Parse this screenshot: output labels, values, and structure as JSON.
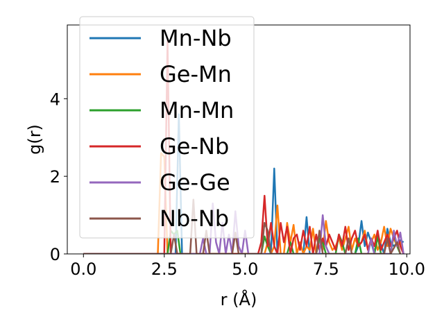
{
  "chart_data": {
    "type": "line",
    "title": "",
    "xlabel": "r (Å)",
    "ylabel": "g(r)",
    "xlim": [
      -0.5,
      10.1
    ],
    "ylim": [
      0,
      5.9
    ],
    "xticks": [
      0.0,
      2.5,
      5.0,
      7.5,
      10.0
    ],
    "xtick_labels": [
      "0.0",
      "2.5",
      "5.0",
      "7.5",
      "10.0"
    ],
    "yticks": [
      0,
      2,
      4
    ],
    "ytick_labels": [
      "0",
      "2",
      "4"
    ],
    "grid": false,
    "legend_position": "top-left",
    "series": [
      {
        "name": "Mn-Nb",
        "color": "#1f77b4",
        "x": [
          0.0,
          2.85,
          2.95,
          3.05,
          3.15,
          5.8,
          5.9,
          6.0,
          6.1,
          6.8,
          6.9,
          7.0,
          7.1,
          8.4,
          8.5,
          8.6,
          8.7,
          8.8,
          8.9,
          9.0,
          9.1,
          9.3,
          9.4,
          9.5,
          9.6,
          9.8,
          9.9
        ],
        "y": [
          0,
          0,
          3.6,
          0,
          0,
          0,
          2.2,
          0,
          0,
          0,
          0.95,
          0,
          0,
          0,
          0.2,
          0.85,
          0.2,
          0.55,
          0.3,
          0,
          0.5,
          0,
          0.65,
          0.3,
          0.2,
          0.35,
          0.3
        ]
      },
      {
        "name": "Ge-Mn",
        "color": "#ff7f0e",
        "x": [
          0.0,
          2.3,
          2.4,
          2.5,
          2.6,
          3.0,
          5.6,
          5.7,
          5.8,
          5.9,
          6.0,
          6.1,
          6.2,
          6.3,
          6.4,
          6.5,
          6.6,
          6.7,
          6.8,
          6.9,
          7.0,
          7.1,
          7.2,
          7.3,
          7.4,
          7.5,
          7.6,
          7.7,
          7.8,
          7.9,
          8.0,
          8.1,
          8.2,
          8.3,
          8.4,
          8.5,
          8.6,
          8.7,
          8.8,
          8.9,
          9.0,
          9.1,
          9.2,
          9.3,
          9.4,
          9.5,
          9.6,
          9.7,
          9.8,
          9.9
        ],
        "y": [
          0,
          0,
          2.6,
          2.5,
          0,
          0,
          0,
          0.3,
          0,
          0.2,
          1.25,
          0,
          0,
          0.8,
          0.3,
          0.75,
          0,
          0.3,
          0,
          0.2,
          0.1,
          0.65,
          0,
          0.4,
          0.1,
          0.85,
          0.3,
          0.1,
          0.2,
          0.4,
          0.1,
          0.4,
          0.7,
          0.1,
          0.4,
          0.2,
          0.3,
          0.6,
          0.1,
          0.3,
          0.5,
          0.1,
          0.3,
          0.7,
          0.2,
          0.65,
          0.4,
          0.2,
          0.3,
          0
        ]
      },
      {
        "name": "Mn-Mn",
        "color": "#2ca02c",
        "x": [
          0.0,
          2.6,
          2.7,
          2.8,
          2.9,
          3.0,
          5.5,
          5.6,
          5.7,
          5.8,
          6.3,
          6.4,
          6.5,
          7.2,
          7.3,
          7.4,
          7.5,
          7.8,
          7.9,
          8.0,
          8.1,
          8.4,
          8.5,
          8.6,
          9.0,
          9.1,
          9.2,
          9.5,
          9.6,
          9.7,
          9.8
        ],
        "y": [
          0,
          0,
          0.6,
          0.5,
          0.6,
          0,
          0,
          0.45,
          0.2,
          0,
          0,
          0.3,
          0,
          0,
          0.4,
          0.3,
          0,
          0,
          0.5,
          0.3,
          0,
          0,
          0.4,
          0,
          0,
          0.45,
          0,
          0,
          0.5,
          0.2,
          0
        ]
      },
      {
        "name": "Ge-Nb",
        "color": "#d62728",
        "x": [
          0.0,
          2.5,
          2.6,
          2.7,
          2.8,
          5.4,
          5.5,
          5.6,
          5.7,
          5.8,
          5.9,
          6.0,
          6.1,
          6.2,
          6.3,
          6.4,
          6.5,
          6.6,
          6.7,
          6.8,
          6.9,
          7.0,
          7.1,
          7.2,
          7.3,
          7.4,
          7.5,
          7.6,
          7.7,
          7.8,
          7.9,
          8.0,
          8.1,
          8.2,
          8.3,
          8.4,
          8.5,
          8.6,
          8.7,
          8.8,
          8.9,
          9.0,
          9.1,
          9.2,
          9.3,
          9.4,
          9.5,
          9.6,
          9.7,
          9.8,
          9.9
        ],
        "y": [
          0,
          0,
          5.5,
          0,
          0,
          0,
          0.3,
          1.5,
          0.2,
          0.8,
          0.2,
          0,
          0.8,
          0.3,
          0.7,
          0,
          0.4,
          0.5,
          0.1,
          0.6,
          0.2,
          0.7,
          0,
          0.5,
          0.1,
          0.4,
          0.2,
          0.5,
          0.3,
          0.1,
          0.5,
          0.2,
          0.7,
          0.1,
          0.4,
          0.6,
          0.2,
          0.3,
          0.5,
          0.1,
          0.4,
          0.2,
          0.6,
          0.1,
          0.3,
          0.5,
          0.2,
          0.4,
          0.6,
          0.2,
          0
        ]
      },
      {
        "name": "Ge-Ge",
        "color": "#9467bd",
        "x": [
          0.0,
          3.6,
          3.7,
          3.8,
          3.9,
          4.0,
          4.1,
          4.2,
          4.3,
          4.4,
          4.5,
          4.6,
          4.7,
          4.8,
          4.9,
          5.0,
          5.1,
          5.2,
          7.3,
          7.4,
          7.5,
          7.6,
          8.8,
          8.9,
          9.0,
          9.5,
          9.6,
          9.7,
          9.8,
          9.9
        ],
        "y": [
          0,
          0,
          0.4,
          0,
          0,
          1.3,
          0.3,
          0,
          0.8,
          0,
          0.5,
          0,
          1.1,
          0.2,
          0,
          0.6,
          0,
          0,
          0,
          1.0,
          0.2,
          0,
          0,
          0.4,
          0,
          0,
          0.6,
          0.2,
          0.55,
          0
        ]
      },
      {
        "name": "Nb-Nb",
        "color": "#8c564b",
        "x": [
          0.0,
          2.7,
          2.8,
          2.9,
          3.3,
          3.4,
          3.5,
          3.7,
          3.8,
          3.9,
          4.6,
          4.7,
          4.8,
          5.5,
          5.6,
          5.7,
          5.8,
          7.2,
          7.3,
          7.4,
          8.1,
          8.2,
          8.3,
          9.3,
          9.4,
          9.5,
          9.7,
          9.8
        ],
        "y": [
          0,
          0,
          0.5,
          0,
          0,
          1.4,
          0,
          0,
          0.6,
          0,
          0,
          0.55,
          0,
          0,
          0.8,
          0.6,
          0,
          0,
          0.6,
          0,
          0,
          0.4,
          0,
          0,
          0.4,
          0,
          0.3,
          0
        ]
      }
    ]
  }
}
